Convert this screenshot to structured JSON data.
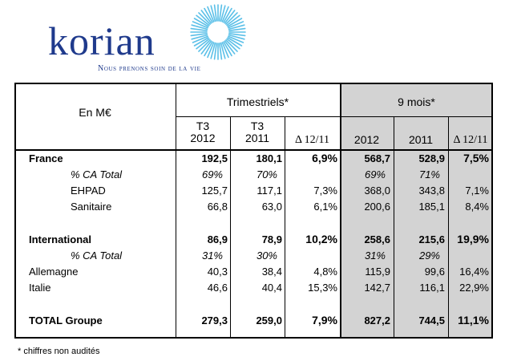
{
  "logo": {
    "name": "korian",
    "tagline": "Nous prenons soin de la vie",
    "colors": {
      "word": "#1f3a8c",
      "sun": "#5bc0e8"
    }
  },
  "table": {
    "unit_label": "En M€",
    "group_quarterly": "Trimestriels*",
    "group_nine_months": "9 mois*",
    "quarterly_cols": [
      "T3\n2012",
      "T3\n2011"
    ],
    "delta_label": "Δ 12/11",
    "nine_cols": [
      "2012",
      "2011"
    ],
    "rows": [
      {
        "label": "France",
        "style": "bold",
        "indent": 0,
        "values": [
          "192,5",
          "180,1",
          "6,9%",
          "568,7",
          "528,9",
          "7,5%"
        ]
      },
      {
        "label": "% CA Total",
        "style": "italic",
        "indent": 2,
        "values": [
          "69%",
          "70%",
          "",
          "69%",
          "71%",
          ""
        ]
      },
      {
        "label": "EHPAD",
        "style": "plain",
        "indent": 2,
        "values": [
          "125,7",
          "117,1",
          "7,3%",
          "368,0",
          "343,8",
          "7,1%"
        ]
      },
      {
        "label": "Sanitaire",
        "style": "plain",
        "indent": 2,
        "values": [
          "66,8",
          "63,0",
          "6,1%",
          "200,6",
          "185,1",
          "8,4%"
        ]
      },
      {
        "label": "International",
        "style": "bold",
        "indent": 0,
        "values": [
          "86,9",
          "78,9",
          "10,2%",
          "258,6",
          "215,6",
          "19,9%"
        ]
      },
      {
        "label": "% CA Total",
        "style": "italic",
        "indent": 2,
        "values": [
          "31%",
          "30%",
          "",
          "31%",
          "29%",
          ""
        ]
      },
      {
        "label": "Allemagne",
        "style": "plain",
        "indent": 0,
        "values": [
          "40,3",
          "38,4",
          "4,8%",
          "115,9",
          "99,6",
          "16,4%"
        ]
      },
      {
        "label": "Italie",
        "style": "plain",
        "indent": 0,
        "values": [
          "46,6",
          "40,4",
          "15,3%",
          "142,7",
          "116,1",
          "22,9%"
        ]
      },
      {
        "label": "TOTAL Groupe",
        "style": "bold",
        "indent": 0,
        "values": [
          "279,3",
          "259,0",
          "7,9%",
          "827,2",
          "744,5",
          "11,1%"
        ]
      }
    ],
    "shade_color": "#d3d3d3"
  },
  "footnote": "* chiffres non audités"
}
